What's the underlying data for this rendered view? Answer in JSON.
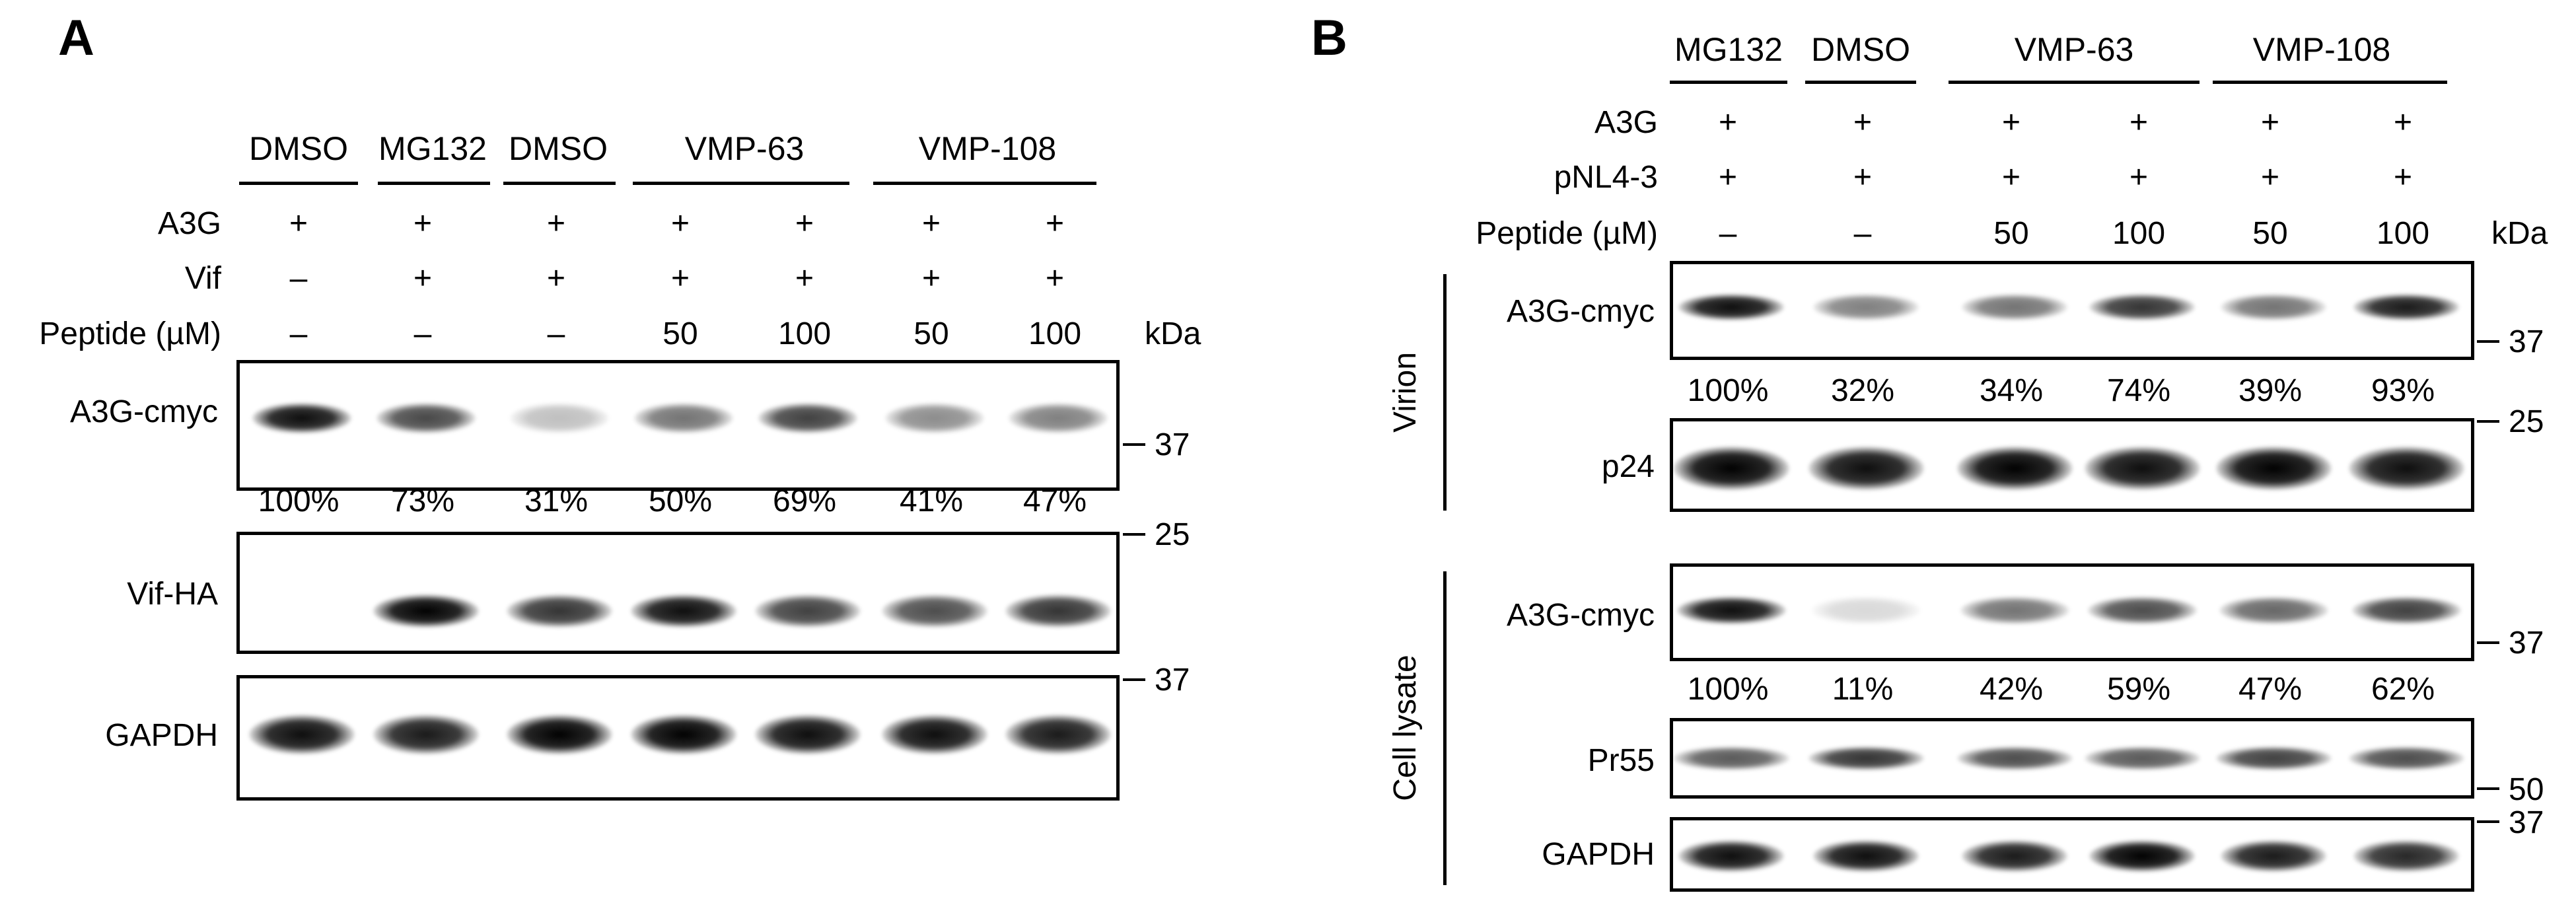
{
  "panelA": {
    "letter": "A",
    "groups": [
      "DMSO",
      "MG132",
      "DMSO",
      "VMP-63",
      "VMP-108"
    ],
    "row_labels": [
      "A3G",
      "Vif",
      "Peptide (µM)"
    ],
    "rows": {
      "a3g": [
        "+",
        "+",
        "+",
        "+",
        "+",
        "+",
        "+"
      ],
      "vif": [
        "–",
        "+",
        "+",
        "+",
        "+",
        "+",
        "+"
      ],
      "peptide": [
        "–",
        "–",
        "–",
        "50",
        "100",
        "50",
        "100"
      ]
    },
    "kda_label": "kDa",
    "blot_labels": [
      "A3G-cmyc",
      "Vif-HA",
      "GAPDH"
    ],
    "markers": [
      "37",
      "25",
      "37"
    ],
    "quant": [
      "100%",
      "73%",
      "31%",
      "50%",
      "69%",
      "41%",
      "47%"
    ],
    "band_levels": {
      "a3g": [
        0.95,
        0.72,
        0.25,
        0.55,
        0.75,
        0.45,
        0.5
      ],
      "vif": [
        0.0,
        1.0,
        0.8,
        0.95,
        0.75,
        0.7,
        0.8
      ],
      "gapdh": [
        0.95,
        0.9,
        1.0,
        1.0,
        0.95,
        0.95,
        0.9
      ]
    }
  },
  "panelB": {
    "letter": "B",
    "groups": [
      "MG132",
      "DMSO",
      "VMP-63",
      "VMP-108"
    ],
    "row_labels": [
      "A3G",
      "pNL4-3",
      "Peptide (µM)"
    ],
    "rows": {
      "a3g": [
        "+",
        "+",
        "+",
        "+",
        "+",
        "+"
      ],
      "pnl": [
        "+",
        "+",
        "+",
        "+",
        "+",
        "+"
      ],
      "peptide": [
        "–",
        "–",
        "50",
        "100",
        "50",
        "100"
      ]
    },
    "kda_label": "kDa",
    "section_labels": [
      "Virion",
      "Cell lysate"
    ],
    "blot_labels": [
      "A3G-cmyc",
      "p24",
      "A3G-cmyc",
      "Pr55",
      "GAPDH"
    ],
    "markers": [
      "37",
      "25",
      "37",
      "50",
      "37"
    ],
    "quant_virion": [
      "100%",
      "32%",
      "34%",
      "74%",
      "39%",
      "93%"
    ],
    "quant_lysate": [
      "100%",
      "11%",
      "42%",
      "59%",
      "47%",
      "62%"
    ],
    "band_levels": {
      "virion_a3g": [
        0.95,
        0.5,
        0.55,
        0.8,
        0.55,
        0.9
      ],
      "p24": [
        1.0,
        0.95,
        1.0,
        0.95,
        1.0,
        0.95
      ],
      "lysate_a3g": [
        0.95,
        0.15,
        0.55,
        0.7,
        0.6,
        0.75
      ],
      "pr55": [
        0.65,
        0.8,
        0.7,
        0.65,
        0.75,
        0.7
      ],
      "gapdh": [
        0.95,
        0.95,
        0.9,
        1.0,
        0.9,
        0.85
      ]
    }
  }
}
